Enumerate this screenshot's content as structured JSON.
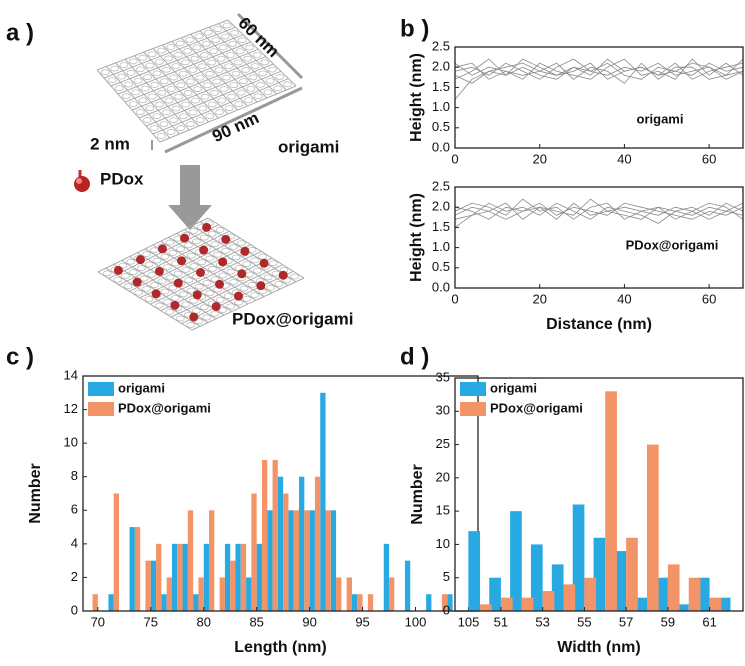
{
  "panels": [
    "a )",
    "b )",
    "c )",
    "d )"
  ],
  "diagram": {
    "width_label": "60 nm",
    "length_label": "90 nm",
    "height_label": "2 nm",
    "origami_label": "origami",
    "drug_label": "PDox",
    "product_label": "PDox@origami"
  },
  "chart_data": [
    {
      "type": "line",
      "ylabel": "Height (nm)",
      "annotation": "origami",
      "color": "#8a8a8a",
      "x": [
        0,
        4,
        8,
        12,
        16,
        20,
        24,
        28,
        32,
        36,
        40,
        44,
        48,
        52,
        56,
        60,
        64,
        68
      ],
      "series": [
        {
          "values": [
            1.9,
            2.0,
            1.8,
            2.1,
            1.9,
            1.7,
            2.0,
            2.2,
            1.9,
            1.8,
            2.0,
            1.9,
            2.1,
            1.8,
            1.9,
            2.0,
            1.8,
            1.9
          ]
        },
        {
          "values": [
            1.2,
            1.7,
            1.9,
            1.8,
            2.2,
            2.0,
            1.8,
            1.9,
            2.1,
            1.7,
            1.9,
            2.0,
            1.8,
            2.1,
            1.7,
            1.9,
            2.0,
            2.1
          ]
        },
        {
          "values": [
            2.1,
            1.8,
            2.0,
            1.9,
            1.7,
            2.1,
            1.9,
            1.8,
            1.7,
            2.0,
            2.2,
            1.8,
            1.9,
            1.7,
            2.2,
            1.8,
            2.1,
            1.8
          ]
        },
        {
          "values": [
            1.7,
            1.9,
            2.2,
            1.8,
            2.0,
            1.8,
            1.7,
            2.0,
            1.9,
            2.1,
            1.8,
            1.7,
            2.0,
            1.9,
            1.8,
            2.1,
            1.9,
            2.0
          ]
        },
        {
          "values": [
            2.0,
            2.1,
            1.7,
            1.9,
            1.8,
            1.9,
            2.1,
            1.7,
            2.0,
            1.9,
            1.6,
            2.1,
            1.7,
            2.0,
            2.0,
            1.7,
            1.8,
            2.2
          ]
        },
        {
          "values": [
            1.8,
            1.6,
            1.9,
            2.0,
            2.1,
            1.9,
            1.8,
            2.0,
            1.8,
            2.2,
            1.9,
            2.0,
            1.8,
            1.9,
            2.1,
            2.0,
            1.7,
            1.9
          ]
        }
      ],
      "xlim": [
        0,
        68
      ],
      "xticks": [
        0,
        20,
        40,
        60
      ],
      "ylim": [
        0,
        2.5
      ],
      "yticks": [
        {
          "value": 0,
          "label": "0.0"
        },
        0.5,
        {
          "value": 1,
          "label": "1.0"
        },
        1.5,
        {
          "value": 2,
          "label": "2.0"
        },
        2.5
      ]
    },
    {
      "type": "line",
      "ylabel": "Height (nm)",
      "xlabel": "Distance (nm)",
      "annotation": "PDox@origami",
      "color": "#8a8a8a",
      "x": [
        0,
        4,
        8,
        12,
        16,
        20,
        24,
        28,
        32,
        36,
        40,
        44,
        48,
        52,
        56,
        60,
        64,
        68
      ],
      "series": [
        {
          "values": [
            1.8,
            2.0,
            1.9,
            2.1,
            1.7,
            2.0,
            1.9,
            1.8,
            2.2,
            1.9,
            1.8,
            1.7,
            2.0,
            1.9,
            1.8,
            2.0,
            1.9,
            1.8
          ]
        },
        {
          "values": [
            1.5,
            1.8,
            2.1,
            1.9,
            2.0,
            1.8,
            2.1,
            1.9,
            1.7,
            2.0,
            1.9,
            1.8,
            1.6,
            1.9,
            2.0,
            1.8,
            2.1,
            1.9
          ]
        },
        {
          "values": [
            2.0,
            1.9,
            1.7,
            2.0,
            1.9,
            2.1,
            1.8,
            2.0,
            1.9,
            1.8,
            2.1,
            2.0,
            1.9,
            1.8,
            1.7,
            1.9,
            1.8,
            2.0
          ]
        },
        {
          "values": [
            1.9,
            2.1,
            2.0,
            1.8,
            2.2,
            1.9,
            2.0,
            1.7,
            2.0,
            2.1,
            1.7,
            1.9,
            2.0,
            1.7,
            1.9,
            2.1,
            2.0,
            1.7
          ]
        },
        {
          "values": [
            1.7,
            1.8,
            1.9,
            1.7,
            1.9,
            2.0,
            1.7,
            2.1,
            1.8,
            1.9,
            2.0,
            1.9,
            1.8,
            2.0,
            1.9,
            1.7,
            1.9,
            2.1
          ]
        }
      ],
      "xlim": [
        0,
        68
      ],
      "xticks": [
        0,
        20,
        40,
        60
      ],
      "ylim": [
        0,
        2.5
      ],
      "yticks": [
        {
          "value": 0,
          "label": "0.0"
        },
        0.5,
        {
          "value": 1,
          "label": "1.0"
        },
        1.5,
        {
          "value": 2,
          "label": "2.0"
        },
        2.5
      ]
    },
    {
      "type": "bar",
      "xlabel": "Length (nm)",
      "ylabel": "Number",
      "legend": "upper left",
      "x": [
        70,
        71,
        72,
        73,
        74,
        75,
        76,
        77,
        78,
        79,
        80,
        81,
        82,
        83,
        84,
        85,
        86,
        87,
        88,
        89,
        90,
        91,
        92,
        93,
        94,
        95,
        96,
        97,
        98,
        99,
        100,
        101,
        102,
        103,
        104
      ],
      "series": [
        {
          "name": "origami",
          "color": "#29a9e1",
          "values": [
            0,
            1,
            0,
            5,
            0,
            3,
            1,
            4,
            4,
            1,
            4,
            0,
            4,
            4,
            2,
            4,
            6,
            8,
            6,
            8,
            6,
            13,
            6,
            0,
            1,
            0,
            0,
            4,
            0,
            3,
            0,
            1,
            0,
            1,
            0
          ]
        },
        {
          "name": "PDox@origami",
          "color": "#f29468",
          "values": [
            1,
            0,
            7,
            0,
            5,
            3,
            4,
            2,
            4,
            6,
            2,
            6,
            2,
            3,
            4,
            7,
            9,
            9,
            7,
            6,
            6,
            8,
            6,
            2,
            2,
            1,
            1,
            0,
            2,
            0,
            0,
            0,
            0,
            1,
            0
          ]
        }
      ],
      "xlim": [
        68.6,
        105.9
      ],
      "xticks": [
        70,
        75,
        80,
        85,
        90,
        95,
        100,
        105
      ],
      "ylim": [
        0,
        14
      ],
      "yticks": [
        0,
        2,
        4,
        6,
        8,
        10,
        12,
        14
      ]
    },
    {
      "type": "bar",
      "xlabel": "Width (nm)",
      "ylabel": "Number",
      "legend": "upper left",
      "x": [
        50,
        51,
        52,
        53,
        54,
        55,
        56,
        57,
        58,
        59,
        60,
        61,
        62
      ],
      "series": [
        {
          "name": "origami",
          "color": "#29a9e1",
          "values": [
            12,
            5,
            15,
            10,
            7,
            16,
            11,
            9,
            2,
            5,
            1,
            5,
            2
          ]
        },
        {
          "name": "PDox@origami",
          "color": "#f29468",
          "values": [
            1,
            2,
            2,
            3,
            4,
            5,
            33,
            11,
            25,
            7,
            5,
            2,
            0
          ]
        }
      ],
      "xlim": [
        48.8,
        62.6
      ],
      "xticks": [
        51,
        53,
        55,
        57,
        59,
        61
      ],
      "ylim": [
        0,
        35
      ],
      "yticks": [
        0,
        5,
        10,
        15,
        20,
        25,
        30,
        35
      ]
    }
  ]
}
